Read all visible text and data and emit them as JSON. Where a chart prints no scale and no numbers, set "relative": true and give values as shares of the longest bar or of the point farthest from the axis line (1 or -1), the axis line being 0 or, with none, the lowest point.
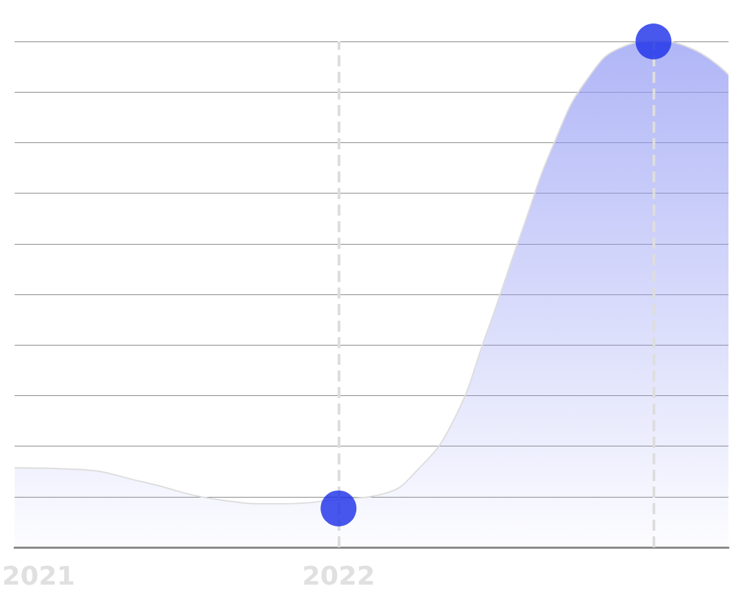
{
  "chart_data": {
    "type": "area",
    "relative": true,
    "xlim": [
      2020.92,
      2023.3
    ],
    "xticks": [
      2021,
      2022
    ],
    "grid": "y",
    "series": [
      {
        "color": "#8f97f3",
        "marker": "none",
        "x": [
          2020.92,
          2021.13,
          2021.35,
          2021.58,
          2021.81,
          2022.0,
          2022.15,
          2022.26,
          2022.38,
          2022.49,
          2022.61,
          2022.72,
          2022.83,
          2022.95,
          2023.05,
          2023.18,
          2023.3
        ],
        "values": [
          0.157,
          0.154,
          0.129,
          0.096,
          0.086,
          0.095,
          0.106,
          0.151,
          0.247,
          0.417,
          0.623,
          0.801,
          0.926,
          0.99,
          1,
          0.985,
          0.934
        ]
      },
      {
        "type": "scatter",
        "color": "#1a2ee8",
        "marker": "circle",
        "x": [
          2022.0,
          2023.05
        ],
        "values": [
          0.077,
          1
        ]
      }
    ],
    "ref_lines": [
      {
        "axis": "x",
        "value": 2022.0,
        "color": "#dddddd",
        "line_style": "dashed"
      },
      {
        "axis": "x",
        "value": 2023.05,
        "color": "#dddddd",
        "line_style": "dashed"
      }
    ]
  }
}
